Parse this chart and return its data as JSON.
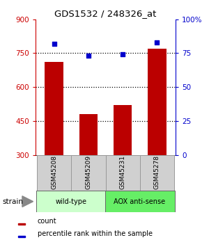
{
  "title": "GDS1532 / 248326_at",
  "samples": [
    "GSM45208",
    "GSM45209",
    "GSM45231",
    "GSM45278"
  ],
  "counts": [
    710,
    480,
    520,
    770
  ],
  "percentiles": [
    82,
    73,
    74,
    83
  ],
  "ylim_left": [
    300,
    900
  ],
  "ylim_right": [
    0,
    100
  ],
  "yticks_left": [
    300,
    450,
    600,
    750,
    900
  ],
  "yticks_right": [
    0,
    25,
    50,
    75,
    100
  ],
  "ytick_labels_right": [
    "0",
    "25",
    "50",
    "75",
    "100%"
  ],
  "hlines": [
    450,
    600,
    750
  ],
  "bar_color": "#bb0000",
  "dot_color": "#0000cc",
  "bar_width": 0.55,
  "strain_groups": [
    {
      "label": "wild-type",
      "samples": [
        0,
        1
      ],
      "color": "#ccffcc"
    },
    {
      "label": "AOX anti-sense",
      "samples": [
        2,
        3
      ],
      "color": "#66ee66"
    }
  ],
  "strain_label": "strain",
  "legend_items": [
    {
      "color": "#bb0000",
      "label": "count"
    },
    {
      "color": "#0000cc",
      "label": "percentile rank within the sample"
    }
  ],
  "tick_color_left": "#cc0000",
  "tick_color_right": "#0000cc",
  "sample_box_color": "#d0d0d0",
  "sample_box_edge": "#999999"
}
